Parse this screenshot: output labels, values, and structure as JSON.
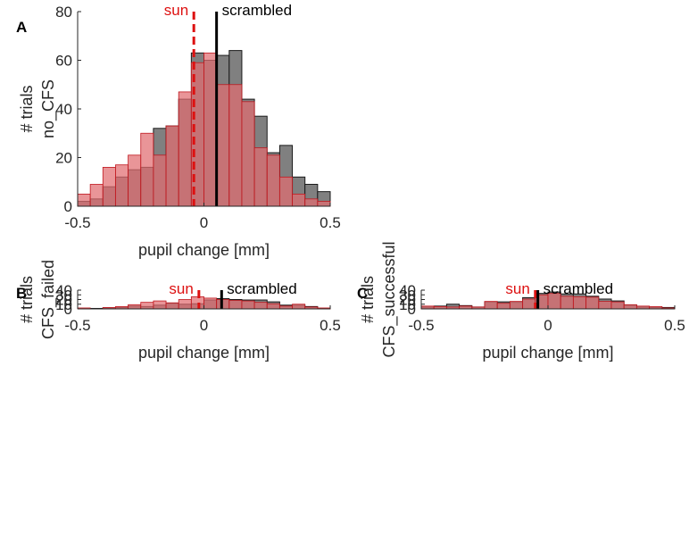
{
  "chart_data": [
    {
      "panel": "A",
      "type": "histogram",
      "xlabel": "pupil change [mm]",
      "ylabel": [
        "# trials",
        "no_CFS"
      ],
      "xlim": [
        -0.5,
        0.5
      ],
      "ylim": [
        0,
        80
      ],
      "xticks": [
        -0.5,
        0,
        0.5
      ],
      "xtick_labels": [
        "-0.5",
        "0",
        "0.5"
      ],
      "yticks": [
        0,
        20,
        40,
        60,
        80
      ],
      "ytick_labels": [
        "0",
        "20",
        "40",
        "60",
        "80"
      ],
      "bin_edges": [
        -0.5,
        -0.45,
        -0.4,
        -0.35,
        -0.3,
        -0.25,
        -0.2,
        -0.15,
        -0.1,
        -0.05,
        0,
        0.05,
        0.1,
        0.15,
        0.2,
        0.25,
        0.3,
        0.35,
        0.4,
        0.45,
        0.5
      ],
      "series": [
        {
          "name": "scrambled",
          "color": "#808080",
          "values": [
            2,
            3,
            8,
            12,
            15,
            16,
            32,
            33,
            44,
            63,
            60,
            62,
            64,
            44,
            37,
            22,
            25,
            12,
            9,
            6
          ]
        },
        {
          "name": "sun",
          "color": "#e06c70",
          "values": [
            5,
            9,
            16,
            17,
            21,
            30,
            21,
            33,
            47,
            59,
            63,
            50,
            50,
            43,
            24,
            21,
            12,
            5,
            3,
            2
          ]
        }
      ],
      "vlines": [
        {
          "label": "sun",
          "x": -0.04,
          "color": "#dd1111",
          "dashed": true,
          "label_anchor": "end"
        },
        {
          "label": "scrambled",
          "x": 0.05,
          "color": "#000000",
          "dashed": false,
          "label_anchor": "start"
        }
      ]
    },
    {
      "panel": "B",
      "type": "histogram",
      "xlabel": "pupil change [mm]",
      "ylabel": [
        "# trials",
        "CFS_failed"
      ],
      "xlim": [
        -0.5,
        0.5
      ],
      "ylim": [
        0,
        40
      ],
      "xticks": [
        -0.5,
        0,
        0.5
      ],
      "xtick_labels": [
        "-0.5",
        "0",
        "0.5"
      ],
      "yticks": [
        0,
        10,
        20,
        30,
        40
      ],
      "ytick_labels": [
        "0",
        "10",
        "20",
        "30",
        "40"
      ],
      "bin_edges": [
        -0.5,
        -0.45,
        -0.4,
        -0.35,
        -0.3,
        -0.25,
        -0.2,
        -0.15,
        -0.1,
        -0.05,
        0,
        0.05,
        0.1,
        0.15,
        0.2,
        0.25,
        0.3,
        0.35,
        0.4,
        0.45,
        0.5
      ],
      "series": [
        {
          "name": "scrambled",
          "color": "#808080",
          "values": [
            0,
            1,
            2,
            3,
            6,
            5,
            8,
            12,
            10,
            11,
            19,
            22,
            20,
            19,
            19,
            15,
            8,
            8,
            5,
            1
          ]
        },
        {
          "name": "sun",
          "color": "#e06c70",
          "values": [
            2,
            0,
            3,
            5,
            9,
            14,
            17,
            13,
            20,
            26,
            23,
            20,
            18,
            17,
            14,
            11,
            6,
            10,
            4,
            2
          ]
        }
      ],
      "vlines": [
        {
          "label": "sun",
          "x": -0.02,
          "color": "#dd1111",
          "dashed": true,
          "label_anchor": "end"
        },
        {
          "label": "scrambled",
          "x": 0.07,
          "color": "#000000",
          "dashed": false,
          "label_anchor": "start"
        }
      ]
    },
    {
      "panel": "C",
      "type": "histogram",
      "xlabel": "pupil change [mm]",
      "ylabel": [
        "# trials",
        "CFS_successful"
      ],
      "xlim": [
        -0.5,
        0.5
      ],
      "ylim": [
        0,
        40
      ],
      "xticks": [
        -0.5,
        0,
        0.5
      ],
      "xtick_labels": [
        "-0.5",
        "0",
        "0.5"
      ],
      "yticks": [
        0,
        10,
        20,
        30,
        40
      ],
      "ytick_labels": [
        "0",
        "10",
        "20",
        "30",
        "40"
      ],
      "bin_edges": [
        -0.5,
        -0.45,
        -0.4,
        -0.35,
        -0.3,
        -0.25,
        -0.2,
        -0.15,
        -0.1,
        -0.05,
        0,
        0.05,
        0.1,
        0.15,
        0.2,
        0.25,
        0.3,
        0.35,
        0.4,
        0.45,
        0.5
      ],
      "series": [
        {
          "name": "scrambled",
          "color": "#808080",
          "values": [
            4,
            6,
            10,
            7,
            4,
            15,
            15,
            14,
            24,
            33,
            36,
            32,
            32,
            27,
            21,
            17,
            8,
            4,
            3,
            3
          ]
        },
        {
          "name": "sun",
          "color": "#e06c70",
          "values": [
            6,
            5,
            4,
            6,
            4,
            16,
            12,
            16,
            21,
            30,
            33,
            27,
            26,
            25,
            16,
            15,
            9,
            6,
            5,
            2
          ]
        }
      ],
      "vlines": [
        {
          "label": "sun",
          "x": -0.05,
          "color": "#dd1111",
          "dashed": true,
          "label_anchor": "end"
        },
        {
          "label": "scrambled",
          "x": -0.04,
          "color": "#000000",
          "dashed": false,
          "label_anchor": "start"
        }
      ]
    }
  ],
  "panel_labels": [
    "A",
    "B",
    "C"
  ]
}
